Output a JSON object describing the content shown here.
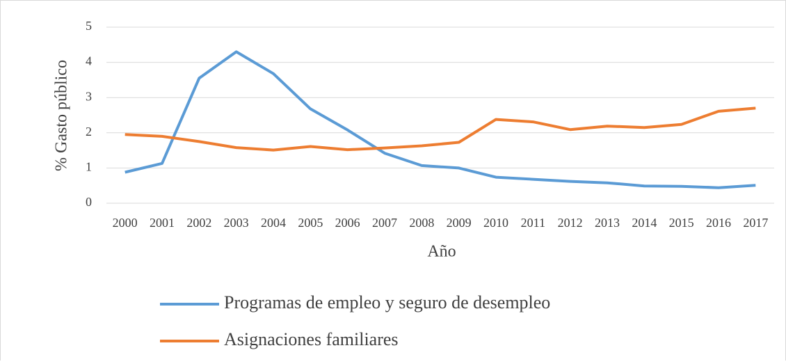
{
  "chart_data": {
    "type": "line",
    "y_label": "% Gasto público",
    "x_label": "Año",
    "categories": [
      "2000",
      "2001",
      "2002",
      "2003",
      "2004",
      "2005",
      "2006",
      "2007",
      "2008",
      "2009",
      "2010",
      "2011",
      "2012",
      "2013",
      "2014",
      "2015",
      "2016",
      "2017"
    ],
    "series": [
      {
        "name": "Programas de empleo y seguro de desempleo",
        "color": "#5b9bd5",
        "values": [
          0.88,
          1.13,
          3.55,
          4.3,
          3.68,
          2.68,
          2.08,
          1.42,
          1.07,
          1.0,
          0.74,
          0.68,
          0.62,
          0.58,
          0.49,
          0.48,
          0.44,
          0.51
        ]
      },
      {
        "name": "Asignaciones familiares",
        "color": "#ed7d31",
        "values": [
          1.95,
          1.9,
          1.75,
          1.58,
          1.51,
          1.61,
          1.52,
          1.57,
          1.63,
          1.73,
          2.38,
          2.31,
          2.09,
          2.19,
          2.15,
          2.24,
          2.61,
          2.7
        ]
      }
    ],
    "ylim": [
      0,
      5
    ],
    "yticks": [
      0,
      1,
      2,
      3,
      4,
      5
    ],
    "grid": true,
    "legend": "bottom"
  }
}
